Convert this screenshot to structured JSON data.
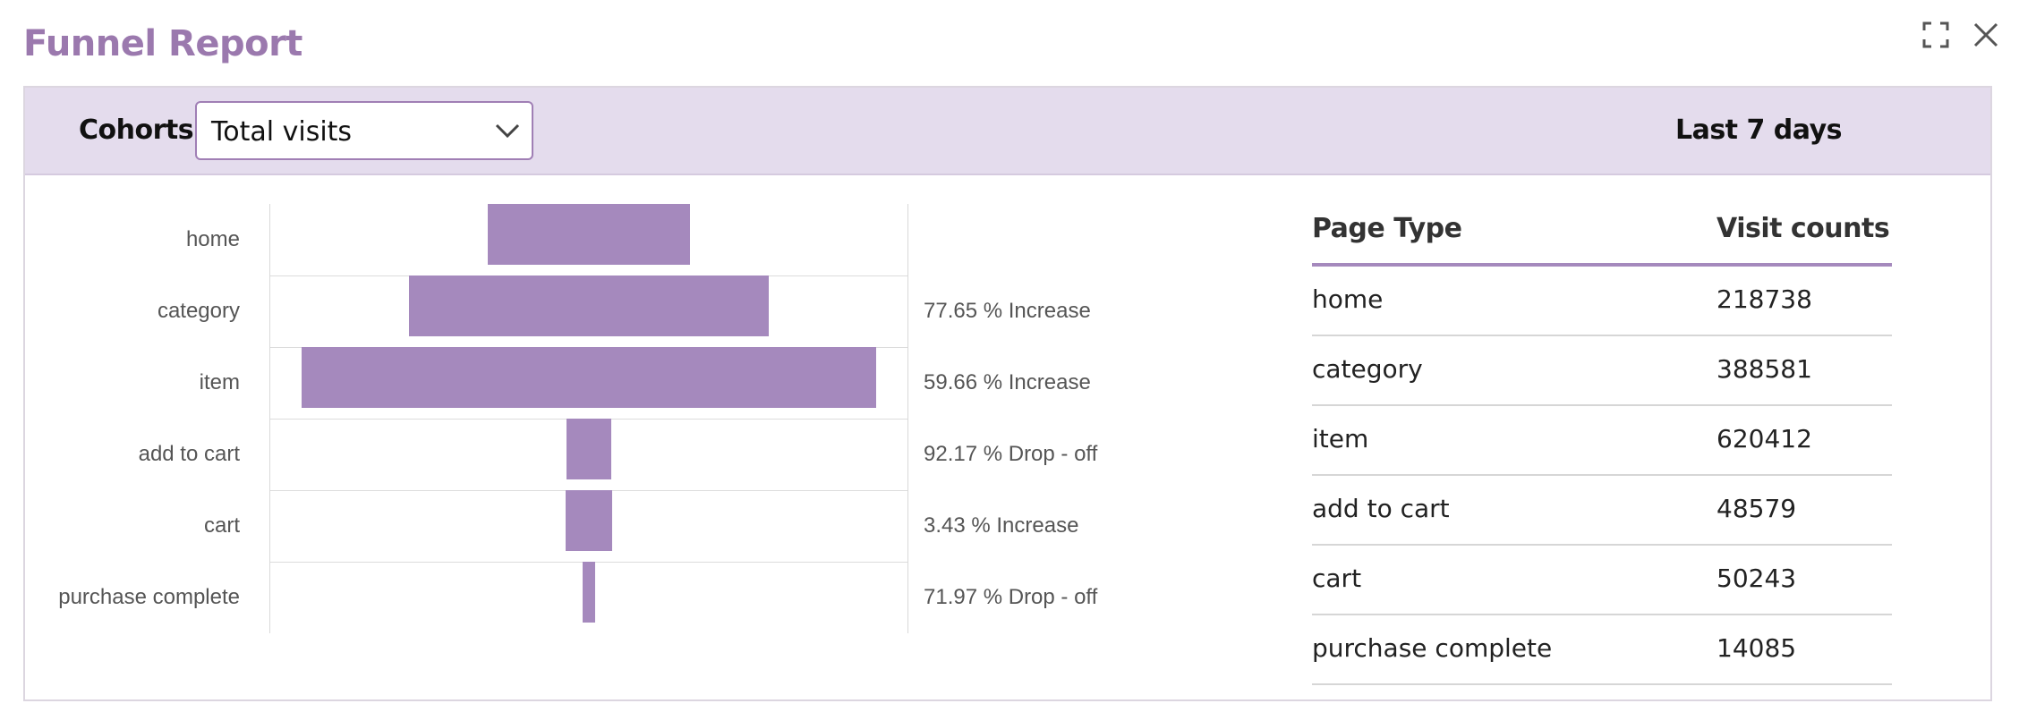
{
  "title": "Funnel Report",
  "toolbar": {
    "cohorts_label": "Cohorts",
    "cohort_select_value": "Total visits",
    "date_range": "Last 7 days"
  },
  "icons": {
    "expand": "expand-icon",
    "close": "close-icon",
    "dropdown": "chevron-down-icon"
  },
  "colors": {
    "accent": "#9b79ae",
    "bar": "#a589bd",
    "toolbar_bg": "#e4dced"
  },
  "chart_data": {
    "type": "bar",
    "orientation": "horizontal-centered-funnel",
    "categories": [
      "home",
      "category",
      "item",
      "add to cart",
      "cart",
      "purchase complete"
    ],
    "values": [
      218738,
      388581,
      620412,
      48579,
      50243,
      14085
    ],
    "annotations": [
      "",
      "77.65 % Increase",
      "59.66 % Increase",
      "92.17 % Drop - off",
      "3.43 % Increase",
      "71.97 % Drop - off"
    ],
    "grid": true
  },
  "table": {
    "headers": [
      "Page Type",
      "Visit counts"
    ],
    "rows": [
      [
        "home",
        "218738"
      ],
      [
        "category",
        "388581"
      ],
      [
        "item",
        "620412"
      ],
      [
        "add to cart",
        "48579"
      ],
      [
        "cart",
        "50243"
      ],
      [
        "purchase complete",
        "14085"
      ]
    ]
  }
}
